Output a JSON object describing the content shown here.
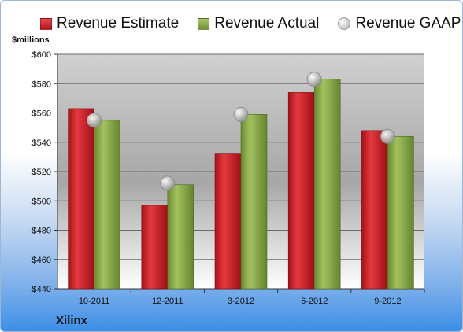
{
  "legend": {
    "estimate": "Revenue Estimate",
    "actual": "Revenue Actual",
    "gaap": "Revenue GAAP"
  },
  "unit_label": "$millions",
  "company": "Xilinx",
  "colors": {
    "estimate": "#c81d25",
    "actual": "#8aad4a",
    "gaap": "#bfbfbf"
  },
  "chart_data": {
    "type": "bar",
    "categories": [
      "10-2011",
      "12-2011",
      "3-2012",
      "6-2012",
      "9-2012"
    ],
    "series": [
      {
        "name": "Revenue Estimate",
        "values": [
          563,
          497,
          532,
          574,
          548
        ]
      },
      {
        "name": "Revenue Actual",
        "values": [
          555,
          511,
          559,
          583,
          544
        ]
      },
      {
        "name": "Revenue GAAP",
        "values": [
          555,
          512,
          559,
          583,
          544
        ],
        "marker": "circle"
      }
    ],
    "ylabel": "$millions",
    "ylim": [
      440,
      600
    ],
    "yticks": [
      440,
      460,
      480,
      500,
      520,
      540,
      560,
      580,
      600
    ],
    "ytick_labels": [
      "$440",
      "$460",
      "$480",
      "$500",
      "$520",
      "$540",
      "$560",
      "$580",
      "$600"
    ],
    "grid": true,
    "legend_position": "top"
  }
}
